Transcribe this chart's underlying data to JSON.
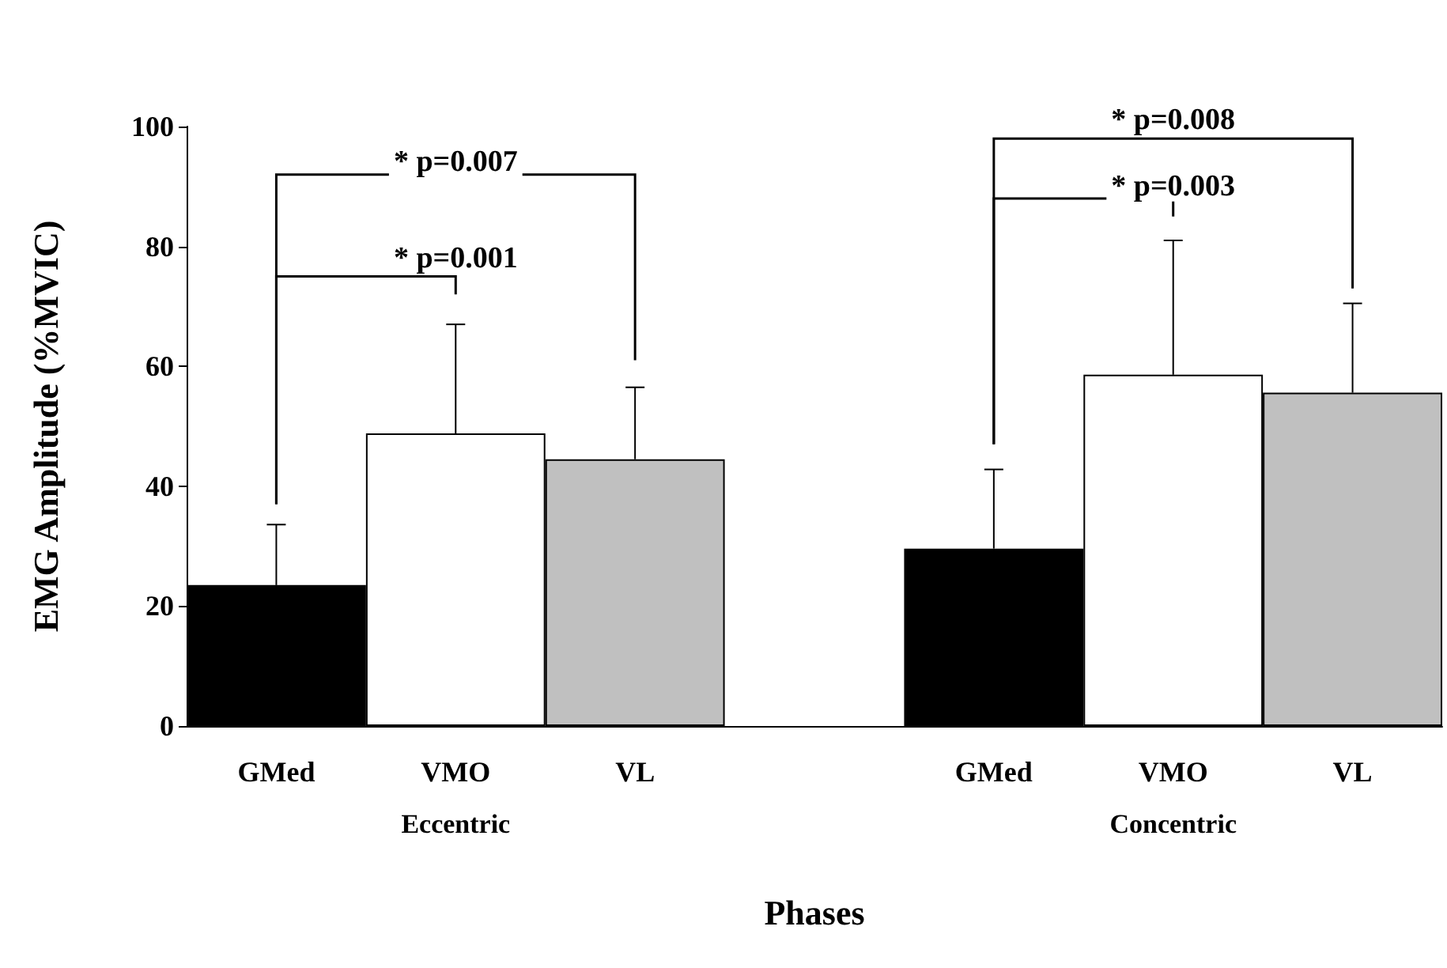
{
  "chart_data": {
    "type": "bar",
    "xlabel": "Phases",
    "ylabel": "EMG Amplitude (%MVIC)",
    "categories": [
      "GMed",
      "VMO",
      "VL",
      null,
      "GMed",
      "VMO",
      "VL"
    ],
    "values": [
      23.5,
      48.8,
      44.5,
      null,
      29.6,
      58.6,
      55.6
    ],
    "colors": [
      "#000000",
      "#ffffff",
      "#c0c0c0",
      "#ffffff",
      "#000000",
      "#ffffff",
      "#c0c0c0"
    ],
    "errors": [
      [
        23.5,
        33.6
      ],
      [
        48.8,
        67
      ],
      [
        44.5,
        56.5
      ],
      null,
      [
        29.6,
        42.8
      ],
      [
        58.6,
        81
      ],
      [
        55.6,
        70.5
      ]
    ],
    "ylim": [
      0,
      100
    ],
    "yticks": [
      0,
      20,
      40,
      60,
      80,
      100
    ],
    "grid": false,
    "annotations": [
      "* p=0.007",
      "* p=0.001",
      "* p=0.008",
      "* p=0.003",
      "Eccentric",
      "Concentric"
    ]
  }
}
